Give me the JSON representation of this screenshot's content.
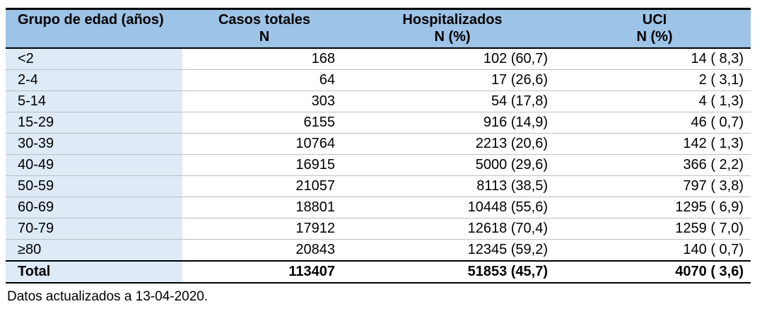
{
  "colors": {
    "header_bg": "#9DC3E6",
    "first_col_bg": "#DEEAF6",
    "heavy_border": "#000000",
    "row_line": "#BFBFBF",
    "text": "#000000"
  },
  "table": {
    "headers": [
      {
        "label": "Grupo de edad (años)",
        "sublabel": ""
      },
      {
        "label": "Casos totales",
        "sublabel": "N"
      },
      {
        "label": "Hospitalizados",
        "sublabel": "N (%)"
      },
      {
        "label": "UCI",
        "sublabel": "N (%)"
      }
    ],
    "rows": [
      {
        "group": "<2",
        "casos": "168",
        "hosp": "102 (60,7)",
        "uci": "14 ( 8,3)"
      },
      {
        "group": "2-4",
        "casos": "64",
        "hosp": "17 (26,6)",
        "uci": "2 ( 3,1)"
      },
      {
        "group": "5-14",
        "casos": "303",
        "hosp": "54 (17,8)",
        "uci": "4 ( 1,3)"
      },
      {
        "group": "15-29",
        "casos": "6155",
        "hosp": "916 (14,9)",
        "uci": "46 ( 0,7)"
      },
      {
        "group": "30-39",
        "casos": "10764",
        "hosp": "2213 (20,6)",
        "uci": "142 ( 1,3)"
      },
      {
        "group": "40-49",
        "casos": "16915",
        "hosp": "5000 (29,6)",
        "uci": "366 ( 2,2)"
      },
      {
        "group": "50-59",
        "casos": "21057",
        "hosp": "8113 (38,5)",
        "uci": "797 ( 3,8)"
      },
      {
        "group": "60-69",
        "casos": "18801",
        "hosp": "10448 (55,6)",
        "uci": "1295 ( 6,9)"
      },
      {
        "group": "70-79",
        "casos": "17912",
        "hosp": "12618 (70,4)",
        "uci": "1259 ( 7,0)"
      },
      {
        "group": "≥80",
        "casos": "20843",
        "hosp": "12345 (59,2)",
        "uci": "140 ( 0,7)"
      }
    ],
    "total": {
      "group": "Total",
      "casos": "113407",
      "hosp": "51853 (45,7)",
      "uci": "4070 ( 3,6)"
    },
    "footnote": "Datos actualizados a 13-04-2020."
  },
  "chart_data": {
    "type": "table",
    "title": "",
    "categories": [
      "<2",
      "2-4",
      "5-14",
      "15-29",
      "30-39",
      "40-49",
      "50-59",
      "60-69",
      "70-79",
      "≥80",
      "Total"
    ],
    "series": [
      {
        "name": "Casos totales N",
        "values": [
          168,
          64,
          303,
          6155,
          10764,
          16915,
          21057,
          18801,
          17912,
          20843,
          113407
        ]
      },
      {
        "name": "Hospitalizados N",
        "values": [
          102,
          17,
          54,
          916,
          2213,
          5000,
          8113,
          10448,
          12618,
          12345,
          51853
        ]
      },
      {
        "name": "Hospitalizados %",
        "values": [
          60.7,
          26.6,
          17.8,
          14.9,
          20.6,
          29.6,
          38.5,
          55.6,
          70.4,
          59.2,
          45.7
        ]
      },
      {
        "name": "UCI N",
        "values": [
          14,
          2,
          4,
          46,
          142,
          366,
          797,
          1295,
          1259,
          140,
          4070
        ]
      },
      {
        "name": "UCI %",
        "values": [
          8.3,
          3.1,
          1.3,
          0.7,
          1.3,
          2.2,
          3.8,
          6.9,
          7.0,
          0.7,
          3.6
        ]
      }
    ]
  }
}
